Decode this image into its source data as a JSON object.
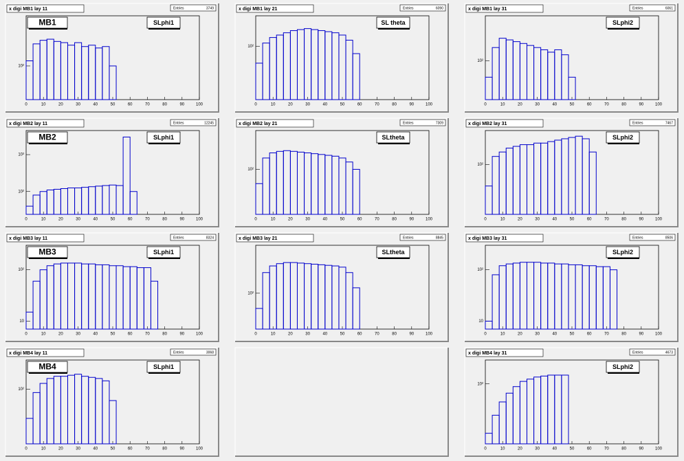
{
  "chart_data": [
    {
      "type": "histogram",
      "title": "x digi MB1 lay 11",
      "stats_label": "Entries",
      "entries": 3749,
      "labels": [
        "MB1",
        "SLphi1"
      ],
      "log": true,
      "xlim": [
        0,
        100
      ],
      "xticks": [
        0,
        10,
        20,
        30,
        40,
        50,
        60,
        70,
        80,
        90,
        100
      ],
      "ylim": [
        30,
        600
      ],
      "yticks": [
        {
          "value": 100,
          "label": "10²"
        }
      ],
      "bins": [
        0,
        4,
        8,
        12,
        16,
        20,
        24,
        28,
        32,
        36,
        40,
        44,
        48,
        52,
        56,
        60,
        64,
        68,
        72,
        76,
        80,
        84,
        88,
        92,
        96,
        100
      ],
      "color": "#0000cc",
      "values": [
        120,
        220,
        250,
        260,
        240,
        230,
        210,
        230,
        200,
        210,
        190,
        200,
        100,
        0,
        0,
        0,
        0,
        0,
        0,
        0,
        0,
        0,
        0,
        0,
        0
      ]
    },
    {
      "type": "histogram",
      "title": "x digi MB1 lay 21",
      "stats_label": "Entries",
      "entries": 6090,
      "labels": [
        "SL theta"
      ],
      "log": true,
      "xlim": [
        0,
        100
      ],
      "xticks": [
        0,
        10,
        20,
        30,
        40,
        50,
        60,
        70,
        80,
        90,
        100
      ],
      "ylim": [
        20,
        250
      ],
      "yticks": [
        {
          "value": 100,
          "label": "10²"
        }
      ],
      "bins": [
        0,
        4,
        8,
        12,
        16,
        20,
        24,
        28,
        32,
        36,
        40,
        44,
        48,
        52,
        56,
        60,
        64,
        68,
        72,
        76,
        80,
        84,
        88,
        92,
        96,
        100
      ],
      "color": "#0000cc",
      "values": [
        60,
        110,
        130,
        140,
        150,
        160,
        165,
        170,
        165,
        160,
        155,
        150,
        140,
        120,
        80,
        0,
        0,
        0,
        0,
        0,
        0,
        0,
        0,
        0,
        0
      ]
    },
    {
      "type": "histogram",
      "title": "x digi MB1 lay 31",
      "stats_label": "Entries",
      "entries": 6061,
      "labels": [
        "SLphi2"
      ],
      "log": true,
      "xlim": [
        0,
        100
      ],
      "xticks": [
        0,
        10,
        20,
        30,
        40,
        50,
        60,
        70,
        80,
        90,
        100
      ],
      "ylim": [
        30,
        400
      ],
      "yticks": [
        {
          "value": 100,
          "label": "10²"
        }
      ],
      "bins": [
        0,
        4,
        8,
        12,
        16,
        20,
        24,
        28,
        32,
        36,
        40,
        44,
        48,
        52,
        56,
        60,
        64,
        68,
        72,
        76,
        80,
        84,
        88,
        92,
        96,
        100
      ],
      "color": "#0000cc",
      "values": [
        60,
        150,
        200,
        190,
        180,
        170,
        160,
        150,
        140,
        130,
        140,
        120,
        60,
        0,
        0,
        0,
        0,
        0,
        0,
        0,
        0,
        0,
        0,
        0,
        0
      ]
    },
    {
      "type": "histogram",
      "title": "x digi MB2 lay 11",
      "stats_label": "Entries",
      "entries": 12245,
      "labels": [
        "MB2",
        "SLphi1"
      ],
      "log": true,
      "xlim": [
        0,
        100
      ],
      "xticks": [
        0,
        10,
        20,
        30,
        40,
        50,
        60,
        70,
        80,
        90,
        100
      ],
      "ylim": [
        24,
        4500
      ],
      "yticks": [
        {
          "value": 100,
          "label": "10²"
        },
        {
          "value": 1000,
          "label": "10³"
        }
      ],
      "bins": [
        0,
        4,
        8,
        12,
        16,
        20,
        24,
        28,
        32,
        36,
        40,
        44,
        48,
        52,
        56,
        60,
        64,
        68,
        72,
        76,
        80,
        84,
        88,
        92,
        96,
        100
      ],
      "color": "#0000cc",
      "values": [
        40,
        80,
        100,
        110,
        115,
        120,
        125,
        125,
        130,
        135,
        140,
        145,
        150,
        145,
        3000,
        100,
        0,
        0,
        0,
        0,
        0,
        0,
        0,
        0,
        0
      ]
    },
    {
      "type": "histogram",
      "title": "x digi MB2 lay 21",
      "stats_label": "Entries",
      "entries": 7309,
      "labels": [
        "SLtheta"
      ],
      "log": true,
      "xlim": [
        0,
        100
      ],
      "xticks": [
        0,
        10,
        20,
        30,
        40,
        50,
        60,
        70,
        80,
        90,
        100
      ],
      "ylim": [
        20,
        400
      ],
      "yticks": [
        {
          "value": 100,
          "label": "10²"
        }
      ],
      "bins": [
        0,
        4,
        8,
        12,
        16,
        20,
        24,
        28,
        32,
        36,
        40,
        44,
        48,
        52,
        56,
        60,
        64,
        68,
        72,
        76,
        80,
        84,
        88,
        92,
        96,
        100
      ],
      "color": "#0000cc",
      "values": [
        60,
        150,
        180,
        190,
        195,
        190,
        185,
        180,
        175,
        170,
        165,
        160,
        150,
        130,
        100,
        0,
        0,
        0,
        0,
        0,
        0,
        0,
        0,
        0,
        0
      ]
    },
    {
      "type": "histogram",
      "title": "x digi MB2 lay 31",
      "stats_label": "Entries",
      "entries": 7467,
      "labels": [
        "SLphi2"
      ],
      "log": true,
      "xlim": [
        0,
        100
      ],
      "xticks": [
        0,
        10,
        20,
        30,
        40,
        50,
        60,
        70,
        80,
        90,
        100
      ],
      "ylim": [
        20,
        300
      ],
      "yticks": [
        {
          "value": 100,
          "label": "10²"
        }
      ],
      "bins": [
        0,
        4,
        8,
        12,
        16,
        20,
        24,
        28,
        32,
        36,
        40,
        44,
        48,
        52,
        56,
        60,
        64,
        68,
        72,
        76,
        80,
        84,
        88,
        92,
        96,
        100
      ],
      "color": "#0000cc",
      "values": [
        50,
        130,
        150,
        170,
        180,
        190,
        190,
        200,
        200,
        210,
        220,
        230,
        240,
        250,
        230,
        150,
        0,
        0,
        0,
        0,
        0,
        0,
        0,
        0,
        0
      ]
    },
    {
      "type": "histogram",
      "title": "x digi MB3 lay 11",
      "stats_label": "Entries",
      "entries": 8324,
      "labels": [
        "MB3",
        "SLphi1"
      ],
      "log": true,
      "xlim": [
        0,
        100
      ],
      "xticks": [
        0,
        10,
        20,
        30,
        40,
        50,
        60,
        70,
        80,
        90,
        100
      ],
      "ylim": [
        7,
        300
      ],
      "yticks": [
        10,
        {
          "value": 100,
          "label": "10²"
        }
      ],
      "bins": [
        0,
        4,
        8,
        12,
        16,
        20,
        24,
        28,
        32,
        36,
        40,
        44,
        48,
        52,
        56,
        60,
        64,
        68,
        72,
        76,
        80,
        84,
        88,
        92,
        96,
        100
      ],
      "color": "#0000cc",
      "values": [
        15,
        60,
        100,
        120,
        130,
        135,
        135,
        135,
        130,
        130,
        125,
        125,
        120,
        120,
        115,
        115,
        110,
        110,
        60,
        0,
        0,
        0,
        0,
        0,
        0
      ]
    },
    {
      "type": "histogram",
      "title": "x digi MB3 lay 21",
      "stats_label": "Entries",
      "entries": 8845,
      "labels": [
        "SLtheta"
      ],
      "log": true,
      "xlim": [
        0,
        100
      ],
      "xticks": [
        0,
        10,
        20,
        30,
        40,
        50,
        60,
        70,
        80,
        90,
        100
      ],
      "ylim": [
        30,
        500
      ],
      "yticks": [
        {
          "value": 100,
          "label": "10²"
        }
      ],
      "bins": [
        0,
        4,
        8,
        12,
        16,
        20,
        24,
        28,
        32,
        36,
        40,
        44,
        48,
        52,
        56,
        60,
        64,
        68,
        72,
        76,
        80,
        84,
        88,
        92,
        96,
        100
      ],
      "color": "#0000cc",
      "values": [
        60,
        200,
        250,
        270,
        280,
        280,
        275,
        270,
        265,
        260,
        255,
        250,
        240,
        200,
        120,
        0,
        0,
        0,
        0,
        0,
        0,
        0,
        0,
        0,
        0
      ]
    },
    {
      "type": "histogram",
      "title": "x digi MB3 lay 31",
      "stats_label": "Entries",
      "entries": 8506,
      "labels": [
        "SLphi2"
      ],
      "log": true,
      "xlim": [
        0,
        100
      ],
      "xticks": [
        0,
        10,
        20,
        30,
        40,
        50,
        60,
        70,
        80,
        90,
        100
      ],
      "ylim": [
        7,
        300
      ],
      "yticks": [
        10,
        {
          "value": 100,
          "label": "10²"
        }
      ],
      "bins": [
        0,
        4,
        8,
        12,
        16,
        20,
        24,
        28,
        32,
        36,
        40,
        44,
        48,
        52,
        56,
        60,
        64,
        68,
        72,
        76,
        80,
        84,
        88,
        92,
        96,
        100
      ],
      "color": "#0000cc",
      "values": [
        10,
        80,
        120,
        130,
        135,
        140,
        140,
        140,
        135,
        135,
        130,
        130,
        125,
        125,
        120,
        120,
        115,
        115,
        100,
        0,
        0,
        0,
        0,
        0,
        0
      ]
    },
    {
      "type": "histogram",
      "title": "x digi MB4 lay 11",
      "stats_label": "Entries",
      "entries": 3068,
      "labels": [
        "MB4",
        "SLphi1"
      ],
      "log": true,
      "xlim": [
        0,
        100
      ],
      "xticks": [
        0,
        10,
        20,
        30,
        40,
        50,
        60,
        70,
        80,
        90,
        100
      ],
      "ylim": [
        18,
        250
      ],
      "yticks": [
        {
          "value": 100,
          "label": "10²"
        }
      ],
      "bins": [
        0,
        4,
        8,
        12,
        16,
        20,
        24,
        28,
        32,
        36,
        40,
        44,
        48,
        52,
        56,
        60,
        64,
        68,
        72,
        76,
        80,
        84,
        88,
        92,
        96,
        100
      ],
      "color": "#0000cc",
      "values": [
        40,
        90,
        120,
        140,
        150,
        150,
        155,
        160,
        150,
        145,
        140,
        130,
        70,
        0,
        0,
        0,
        0,
        0,
        0,
        0,
        0,
        0,
        0,
        0,
        0
      ]
    },
    {
      "type": "histogram",
      "title": "x digi MB4 lay 31",
      "stats_label": "Entries",
      "entries": 4673,
      "labels": [
        "SLphi2"
      ],
      "log": true,
      "xlim": [
        0,
        100
      ],
      "xticks": [
        0,
        10,
        20,
        30,
        40,
        50,
        60,
        70,
        80,
        90,
        100
      ],
      "ylim": [
        10,
        250
      ],
      "yticks": [
        {
          "value": 100,
          "label": "10²"
        }
      ],
      "bins": [
        0,
        4,
        8,
        12,
        16,
        20,
        24,
        28,
        32,
        36,
        40,
        44,
        48,
        52,
        56,
        60,
        64,
        68,
        72,
        76,
        80,
        84,
        88,
        92,
        96,
        100
      ],
      "color": "#0000cc",
      "values": [
        15,
        30,
        50,
        70,
        90,
        110,
        120,
        130,
        135,
        140,
        140,
        140,
        0,
        0,
        0,
        0,
        0,
        0,
        0,
        0,
        0,
        0,
        0,
        0,
        0
      ]
    }
  ]
}
